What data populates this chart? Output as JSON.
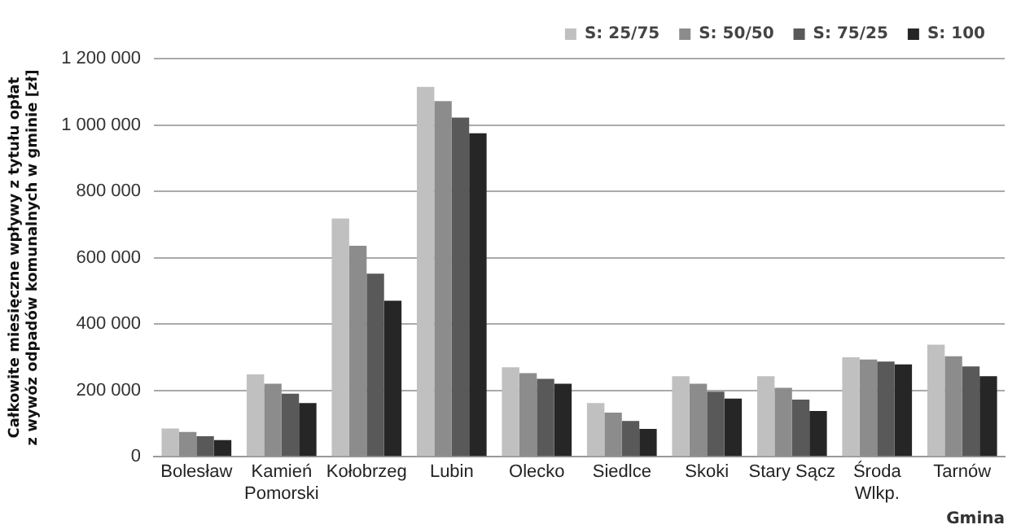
{
  "chart_data": {
    "type": "bar",
    "ylabel": "Całkowite miesięczne wpływy z tytułu opłat z wywóz odpadów komunalnych w gminie [zł]",
    "xlabel": "Gmina",
    "categories": [
      "Bolesław",
      "Kamień Pomorski",
      "Kołobrzeg",
      "Lubin",
      "Olecko",
      "Siedlce",
      "Skoki",
      "Stary Sącz",
      "Środa Wlkp.",
      "Tarnów"
    ],
    "series": [
      {
        "name": "S: 25/75",
        "color": "#c0c0c0",
        "values": [
          85000,
          248000,
          718000,
          1115000,
          270000,
          162000,
          243000,
          243000,
          300000,
          338000
        ]
      },
      {
        "name": "S: 50/50",
        "color": "#8c8c8c",
        "values": [
          75000,
          220000,
          636000,
          1072000,
          252000,
          133000,
          220000,
          208000,
          293000,
          303000
        ]
      },
      {
        "name": "S: 75/25",
        "color": "#595959",
        "values": [
          62000,
          190000,
          552000,
          1022000,
          235000,
          108000,
          196000,
          172000,
          287000,
          272000
        ]
      },
      {
        "name": "S: 100",
        "color": "#262626",
        "values": [
          50000,
          162000,
          470000,
          975000,
          220000,
          84000,
          175000,
          138000,
          278000,
          243000
        ]
      }
    ],
    "ylim": [
      0,
      1200000
    ],
    "yticks": [
      0,
      {
        "value": 200000,
        "label": "200 000"
      },
      {
        "value": 400000,
        "label": "400 000"
      },
      {
        "value": 600000,
        "label": "600 000"
      },
      {
        "value": 800000,
        "label": "800 000"
      },
      {
        "value": 1000000,
        "label": "1 000 000"
      },
      {
        "value": 1200000,
        "label": "1 200 000"
      }
    ],
    "grid": "y",
    "legend": "top right"
  }
}
